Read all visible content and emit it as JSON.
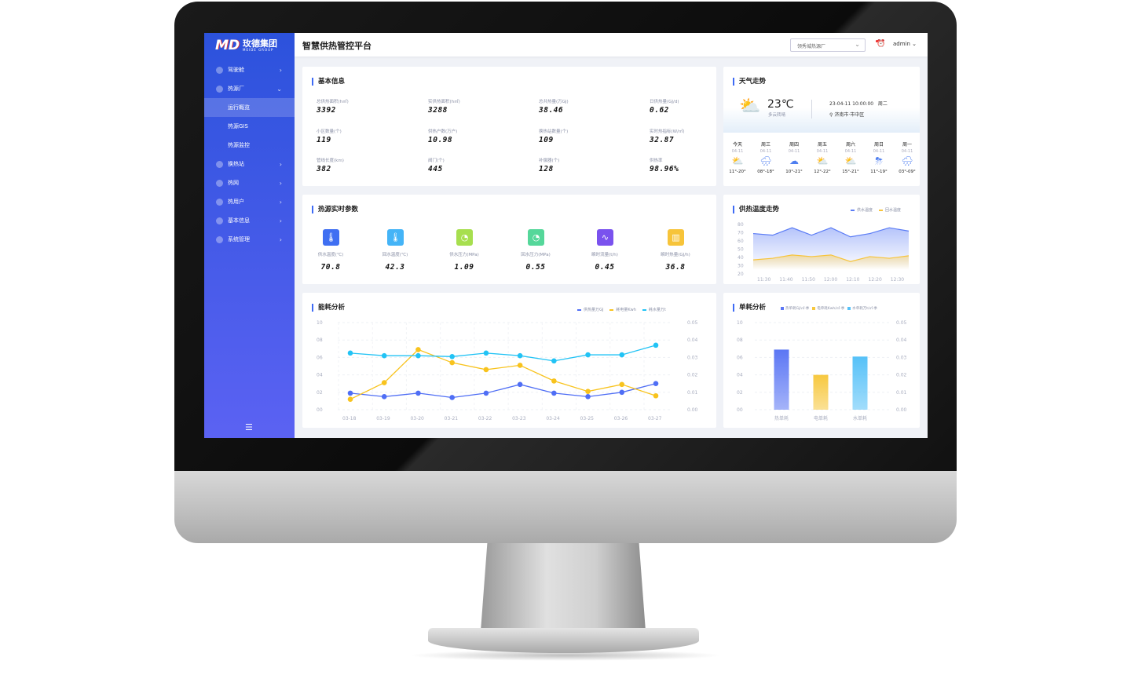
{
  "brand": {
    "name_cn": "玫德集团",
    "name_en": "MEIDE GROUP"
  },
  "header": {
    "title": "智慧供热管控平台",
    "plant_select": "领秀城热源厂",
    "user": "admin"
  },
  "sidebar": {
    "items": [
      {
        "label": "驾驶舱",
        "type": "group",
        "chevron": ">"
      },
      {
        "label": "热源厂",
        "type": "group",
        "chevron": "v"
      },
      {
        "label": "运行概览",
        "type": "sub",
        "active": true
      },
      {
        "label": "热源GIS",
        "type": "sub"
      },
      {
        "label": "热源监控",
        "type": "sub"
      },
      {
        "label": "换热站",
        "type": "group",
        "chevron": ">"
      },
      {
        "label": "热网",
        "type": "group",
        "chevron": ">"
      },
      {
        "label": "热用户",
        "type": "group",
        "chevron": ">"
      },
      {
        "label": "基本信息",
        "type": "group",
        "chevron": ">"
      },
      {
        "label": "系统管理",
        "type": "group",
        "chevron": ">"
      }
    ]
  },
  "basic_info": {
    "title": "基本信息",
    "items": [
      {
        "label": "总供热面积(h㎡)",
        "value": "3392"
      },
      {
        "label": "实供热面积(h㎡)",
        "value": "3288"
      },
      {
        "label": "总共热量(万GJ)",
        "value": "38.46"
      },
      {
        "label": "日供热量(GJ/d)",
        "value": "0.62"
      },
      {
        "label": "小区数量(个)",
        "value": "119"
      },
      {
        "label": "供热户数(万户)",
        "value": "10.98"
      },
      {
        "label": "换热站数量(个)",
        "value": "109"
      },
      {
        "label": "实时热指标(W/㎡)",
        "value": "32.87"
      },
      {
        "label": "管线长度(km)",
        "value": "382"
      },
      {
        "label": "阀门(个)",
        "value": "445"
      },
      {
        "label": "补偿器(个)",
        "value": "128"
      },
      {
        "label": "供热率",
        "value": "98.96%"
      }
    ]
  },
  "realtime": {
    "title": "热源实时参数",
    "items": [
      {
        "label": "供水温度(℃)",
        "value": "70.8",
        "icon": "thermometer-icon",
        "color": "#3f6ff2"
      },
      {
        "label": "回水温度(℃)",
        "value": "42.3",
        "icon": "thermometer-icon",
        "color": "#44b4f7"
      },
      {
        "label": "供水压力(MPa)",
        "value": "1.09",
        "icon": "gauge-icon",
        "color": "#a7df4f"
      },
      {
        "label": "回水压力(MPa)",
        "value": "0.55",
        "icon": "gauge-icon",
        "color": "#55d79a"
      },
      {
        "label": "瞬时流量(t/h)",
        "value": "0.45",
        "icon": "pulse-icon",
        "color": "#7a52ee"
      },
      {
        "label": "瞬时热量(GJ/h)",
        "value": "36.8",
        "icon": "radiator-icon",
        "color": "#f7c43a"
      }
    ]
  },
  "weather": {
    "title": "天气走势",
    "temp": "23℃",
    "desc": "多云转晴",
    "datetime": "23-04-11  10:00:00",
    "weekday": "周二",
    "location": "济南市·市中区",
    "forecast": [
      {
        "day": "今天",
        "date": "04-11",
        "temp": "11°-20°",
        "icon": "partly-sunny-icon"
      },
      {
        "day": "周三",
        "date": "04-11",
        "temp": "08°-18°",
        "icon": "rain-icon"
      },
      {
        "day": "周四",
        "date": "04-11",
        "temp": "10°-21°",
        "icon": "cloudy-night-icon"
      },
      {
        "day": "周五",
        "date": "04-11",
        "temp": "12°-22°",
        "icon": "partly-sunny-icon"
      },
      {
        "day": "周六",
        "date": "04-11",
        "temp": "15°-21°",
        "icon": "partly-sunny-icon"
      },
      {
        "day": "周日",
        "date": "04-11",
        "temp": "11°-19°",
        "icon": "thunderstorm-icon"
      },
      {
        "day": "周一",
        "date": "04-11",
        "temp": "03°-09°",
        "icon": "rain-icon"
      }
    ]
  },
  "chart_data": [
    {
      "type": "area",
      "title": "供热温度走势",
      "legend_position": "top-right",
      "x": [
        "",
        "11:30",
        "11:40",
        "11:50",
        "12:00",
        "12:10",
        "12:20",
        "12:30",
        ""
      ],
      "x_ticks": [
        "11:30",
        "11:40",
        "11:50",
        "12:00",
        "12:10",
        "12:20",
        "12:30"
      ],
      "ylim": [
        20,
        80
      ],
      "y_ticks": [
        "20",
        "30",
        "40",
        "50",
        "60",
        "70",
        "80"
      ],
      "series": [
        {
          "name": "供水温度",
          "color": "#5b7cf5",
          "values": [
            69,
            67,
            76,
            67,
            76,
            65,
            69,
            76,
            72
          ]
        },
        {
          "name": "回水温度",
          "color": "#f7c43a",
          "values": [
            37,
            39,
            43,
            41,
            43,
            35,
            41,
            39,
            42
          ]
        }
      ]
    },
    {
      "type": "line",
      "title": "能耗分析",
      "legend_position": "top-right",
      "grid": true,
      "categories": [
        "03-18",
        "03-19",
        "03-20",
        "03-21",
        "03-22",
        "03-23",
        "03-24",
        "03-25",
        "03-26",
        "03-27"
      ],
      "ylim": [
        0,
        10
      ],
      "y_ticks": [
        "00",
        "02",
        "04",
        "06",
        "08",
        "10"
      ],
      "y2lim": [
        0,
        0.05
      ],
      "y2_ticks": [
        "0.00",
        "0.01",
        "0.02",
        "0.03",
        "0.04",
        "0.05"
      ],
      "series": [
        {
          "name": "供热量万GJ",
          "color": "#4f6ef5",
          "values": [
            1.9,
            1.5,
            1.9,
            1.4,
            1.9,
            2.9,
            1.9,
            1.5,
            2.0,
            3.0
          ]
        },
        {
          "name": "耗电量Kwh",
          "color": "#f8c31d",
          "values": [
            1.2,
            3.1,
            6.9,
            5.4,
            4.6,
            5.1,
            3.3,
            2.1,
            2.9,
            1.6
          ]
        },
        {
          "name": "耗水量万t",
          "color": "#22c3f5",
          "values": [
            6.5,
            6.2,
            6.2,
            6.1,
            6.5,
            6.2,
            5.6,
            6.3,
            6.3,
            7.4
          ]
        }
      ]
    },
    {
      "type": "bar",
      "title": "单耗分析",
      "legend_position": "top-right",
      "grid": true,
      "categories": [
        "热单耗",
        "电单耗",
        "水单耗"
      ],
      "ylim": [
        0,
        10
      ],
      "y_ticks": [
        "00",
        "02",
        "04",
        "06",
        "08",
        "10"
      ],
      "y2lim": [
        0,
        0.05
      ],
      "y2_ticks": [
        "0.00",
        "0.01",
        "0.02",
        "0.03",
        "0.04",
        "0.05"
      ],
      "legend": [
        "热单耗GJ/㎡·季",
        "电单耗Kwh/㎡·季",
        "水单耗万t/㎡·季"
      ],
      "values": [
        6.9,
        4.0,
        6.1
      ],
      "colors": [
        "#5b76f4",
        "#f7c83f",
        "#56c1f8"
      ]
    }
  ]
}
